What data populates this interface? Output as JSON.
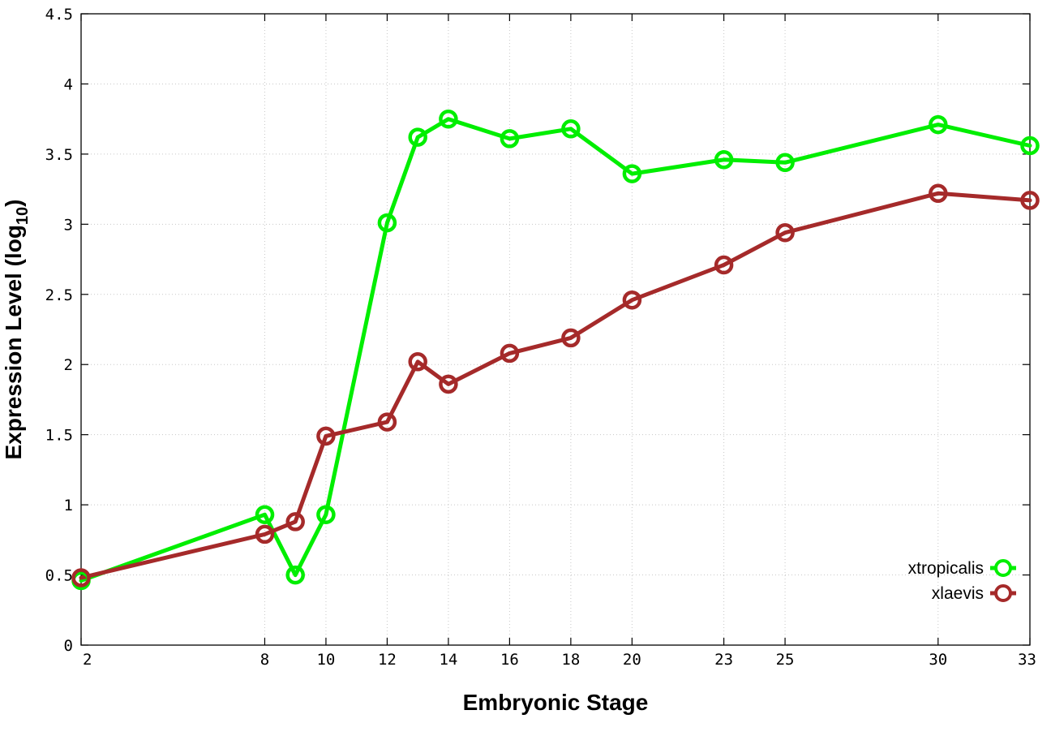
{
  "chart_data": {
    "type": "line",
    "xlabel": "Embryonic Stage",
    "ylabel": {
      "prefix": "Expression Level (log",
      "subscript": "10",
      "suffix": ")"
    },
    "x_ticks": [
      2,
      8,
      10,
      12,
      14,
      16,
      18,
      20,
      23,
      25,
      30,
      33
    ],
    "xlim": [
      2,
      33
    ],
    "ylim": [
      0,
      4.5
    ],
    "y_ticks": [
      "0",
      "0.5",
      "1",
      "1.5",
      "2",
      "2.5",
      "3",
      "3.5",
      "4",
      "4.5"
    ],
    "grid": true,
    "legend_position": "bottom-right",
    "x": [
      2,
      8,
      9,
      10,
      12,
      13,
      14,
      16,
      18,
      20,
      23,
      25,
      30,
      33
    ],
    "series": [
      {
        "name": "xtropicalis",
        "color": "#00ee00",
        "marker": "circle",
        "values": [
          0.46,
          0.93,
          0.5,
          0.93,
          3.01,
          3.62,
          3.75,
          3.61,
          3.68,
          3.36,
          3.46,
          3.44,
          3.71,
          3.56
        ]
      },
      {
        "name": "xlaevis",
        "color": "#a52a2a",
        "marker": "circle",
        "values": [
          0.48,
          0.79,
          0.88,
          1.49,
          1.59,
          2.02,
          1.86,
          2.08,
          2.19,
          2.46,
          2.71,
          2.94,
          3.22,
          3.17
        ]
      }
    ]
  }
}
